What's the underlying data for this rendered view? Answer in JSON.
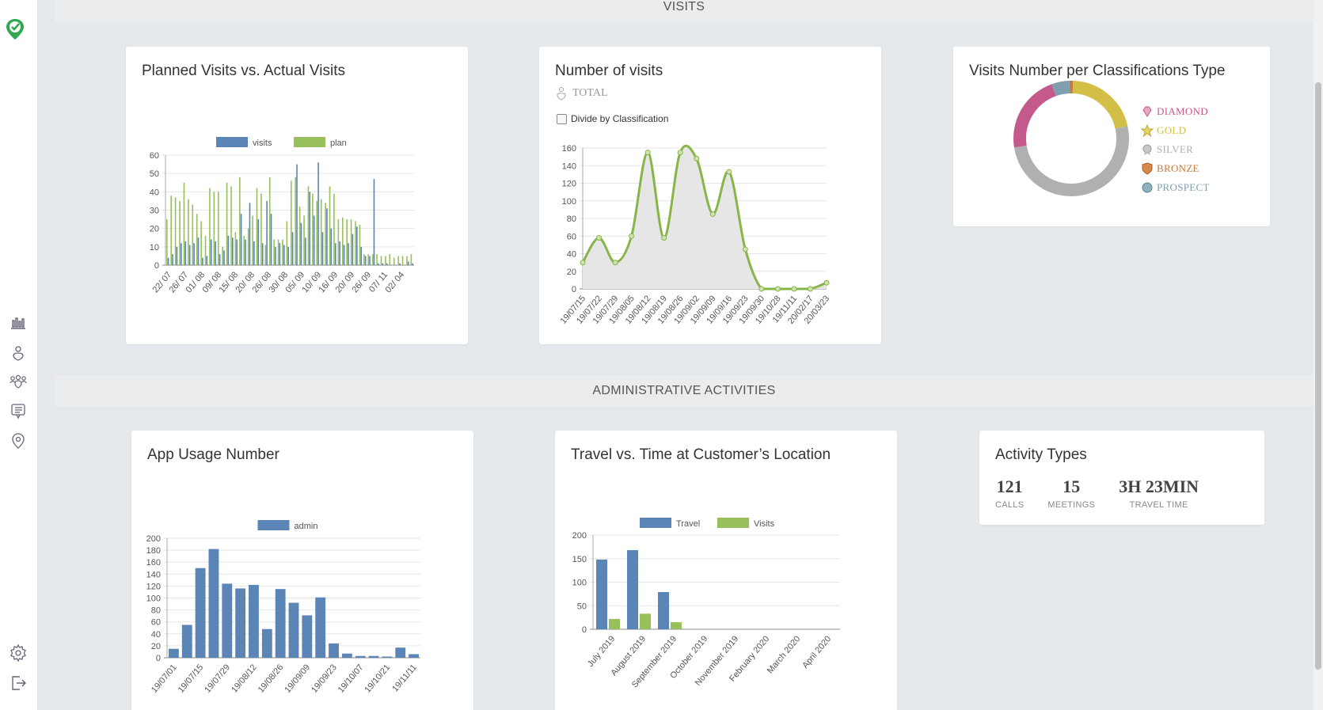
{
  "sections": {
    "visits": "VISITS",
    "admin": "ADMINISTRATIVE ACTIVITIES"
  },
  "colors": {
    "blue": "#5b85b6",
    "green": "#97c05c",
    "line_green": "#86b548",
    "diamond": "#c35a8b",
    "gold": "#d3be46",
    "silver": "#b0b0b0",
    "bronze": "#c57a3e",
    "prospect": "#7f9fad"
  },
  "sidebar": {
    "logo": "check-pin-logo",
    "items": [
      "chart-bars-icon",
      "person-pin-icon",
      "group-icon",
      "list-icon",
      "location-pin-icon"
    ],
    "bottom": [
      "gear-icon",
      "logout-icon"
    ]
  },
  "cards": {
    "planned": {
      "title": "Planned Visits vs. Actual Visits",
      "chart_data": {
        "type": "bar",
        "series": [
          {
            "name": "visits",
            "values": [
              4,
              6,
              10,
              12,
              13,
              11,
              12,
              15,
              4,
              5,
              14,
              13,
              6,
              8,
              16,
              15,
              14,
              28,
              14,
              34,
              13,
              25,
              12,
              35,
              28,
              10,
              12,
              11,
              10,
              18,
              55,
              23,
              15,
              40,
              27,
              56,
              18,
              31,
              20,
              12,
              13,
              11,
              12,
              17,
              21,
              10,
              5,
              5,
              47,
              1,
              1,
              1,
              0,
              0,
              1,
              0,
              2,
              1
            ]
          },
          {
            "name": "plan",
            "values": [
              25,
              38,
              37,
              35,
              45,
              36,
              33,
              28,
              24,
              16,
              42,
              40,
              40,
              10,
              45,
              43,
              18,
              48,
              16,
              20,
              27,
              42,
              39,
              11,
              48,
              14,
              14,
              14,
              24,
              46,
              48,
              32,
              27,
              43,
              39,
              35,
              36,
              34,
              43,
              39,
              25,
              26,
              25,
              25,
              24,
              22,
              6,
              6,
              6,
              6,
              5,
              5,
              6,
              4,
              5,
              5,
              5,
              6
            ]
          }
        ],
        "x_ticks": [
          "22/ 07",
          "26/ 07",
          "01/ 08",
          "09/ 08",
          "15/ 08",
          "20/ 08",
          "26/ 08",
          "30/ 08",
          "05/ 09",
          "10/ 09",
          "16/ 09",
          "20/ 09",
          "26/ 09",
          "07/ 11",
          "02/ 04"
        ],
        "y_ticks": [
          "0",
          "10",
          "20",
          "30",
          "40",
          "50",
          "60"
        ],
        "ylim": [
          0,
          60
        ]
      }
    },
    "number": {
      "title": "Number of visits",
      "total_label": "TOTAL",
      "divide_label": "Divide by Classification",
      "chart_data": {
        "type": "area",
        "x": [
          "19/07/15",
          "19/07/22",
          "19/07/29",
          "19/08/05",
          "19/08/12",
          "19/08/19",
          "19/08/26",
          "19/09/02",
          "19/09/09",
          "19/09/16",
          "19/09/23",
          "19/09/30",
          "19/10/28",
          "19/11/11",
          "20/02/17",
          "20/03/23"
        ],
        "values": [
          30,
          58,
          30,
          60,
          155,
          58,
          155,
          148,
          85,
          133,
          45,
          0,
          0,
          0,
          0,
          7
        ],
        "y_ticks": [
          "0",
          "20",
          "40",
          "60",
          "80",
          "100",
          "120",
          "140",
          "160"
        ],
        "ylim": [
          0,
          160
        ]
      }
    },
    "classification": {
      "title": "Visits Number per Classifications Type",
      "chart_data": {
        "type": "pie",
        "labels": [
          "DIAMOND",
          "GOLD",
          "SILVER",
          "BRONZE",
          "PROSPECT"
        ],
        "values": [
          22,
          21,
          51,
          1,
          5
        ]
      }
    },
    "usage": {
      "title": "App Usage Number",
      "chart_data": {
        "type": "bar",
        "series": [
          {
            "name": "admin",
            "values": [
              15,
              55,
              150,
              182,
              124,
              116,
              122,
              48,
              115,
              92,
              71,
              101,
              24,
              7,
              3,
              3,
              2,
              17,
              6
            ]
          }
        ],
        "x_ticks": [
          "19/07/01",
          "19/07/15",
          "19/07/29",
          "19/08/12",
          "19/08/26",
          "19/09/09",
          "19/09/23",
          "19/10/07",
          "19/10/21",
          "19/11/11"
        ],
        "y_ticks": [
          "0",
          "20",
          "40",
          "60",
          "80",
          "100",
          "120",
          "140",
          "160",
          "180",
          "200"
        ],
        "ylim": [
          0,
          200
        ]
      }
    },
    "travel": {
      "title": "Travel vs. Time at Customer’s Location",
      "chart_data": {
        "type": "bar",
        "categories": [
          "July 2019",
          "August 2019",
          "September 2019",
          "October 2019",
          "November 2019",
          "February 2020",
          "March 2020",
          "April 2020"
        ],
        "series": [
          {
            "name": "Travel",
            "values": [
              148,
              168,
              79,
              0,
              0,
              0,
              0,
              0
            ]
          },
          {
            "name": "Visits",
            "values": [
              22,
              33,
              15,
              0,
              0,
              0,
              0,
              0
            ]
          }
        ],
        "y_ticks": [
          "0",
          "50",
          "100",
          "150",
          "200"
        ],
        "ylim": [
          0,
          200
        ]
      }
    },
    "activity": {
      "title": "Activity Types",
      "stats": [
        {
          "value": "121",
          "label": "CALLS"
        },
        {
          "value": "15",
          "label": "MEETINGS"
        },
        {
          "value": "3H 23MIN",
          "label": "TRAVEL TIME"
        }
      ]
    }
  }
}
